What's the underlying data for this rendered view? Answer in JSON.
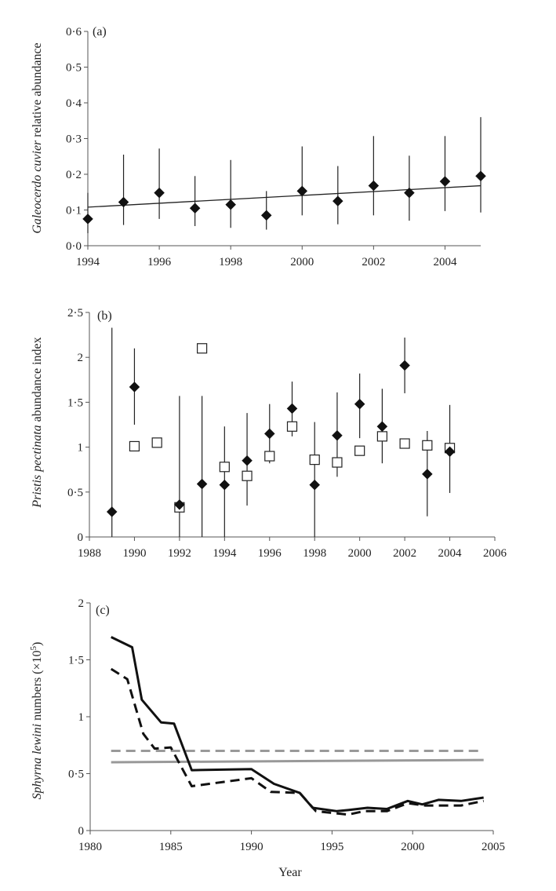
{
  "chart_data": [
    {
      "panel_label": "(a)",
      "type": "scatter",
      "title": "",
      "xlabel": "",
      "ylabel_italic": "Galeocerdo cuvier",
      "ylabel_rest": " relative abundance",
      "xlim": [
        1994,
        2005
      ],
      "ylim": [
        0,
        0.6
      ],
      "xticks": [
        1994,
        1996,
        1998,
        2000,
        2002,
        2004
      ],
      "xtick_labels": [
        "1994",
        "1996",
        "1998",
        "2000",
        "2002",
        "2004"
      ],
      "yticks": [
        0,
        0.1,
        0.2,
        0.3,
        0.4,
        0.5,
        0.6
      ],
      "ytick_labels": [
        "0·0",
        "0·1",
        "0·2",
        "0·3",
        "0·4",
        "0·5",
        "0·6"
      ],
      "series": [
        {
          "name": "abundance",
          "marker": "filled-diamond",
          "x": [
            1994,
            1995,
            1996,
            1997,
            1998,
            1999,
            2000,
            2001,
            2002,
            2003,
            2004,
            2005
          ],
          "y": [
            0.075,
            0.122,
            0.148,
            0.105,
            0.115,
            0.085,
            0.153,
            0.125,
            0.168,
            0.148,
            0.18,
            0.195
          ],
          "err_low": [
            0.035,
            0.058,
            0.075,
            0.055,
            0.05,
            0.045,
            0.085,
            0.06,
            0.085,
            0.07,
            0.097,
            0.093
          ],
          "err_high": [
            0.148,
            0.255,
            0.272,
            0.195,
            0.24,
            0.153,
            0.278,
            0.223,
            0.307,
            0.252,
            0.307,
            0.36
          ]
        }
      ],
      "trendline": {
        "x": [
          1994,
          2005
        ],
        "y": [
          0.108,
          0.168
        ]
      }
    },
    {
      "panel_label": "(b)",
      "type": "scatter",
      "title": "",
      "xlabel": "",
      "ylabel_italic": "Pristis pectinata",
      "ylabel_rest": " abundance index",
      "xlim": [
        1988,
        2006
      ],
      "ylim": [
        0,
        2.5
      ],
      "xticks": [
        1988,
        1990,
        1992,
        1994,
        1996,
        1998,
        2000,
        2002,
        2004,
        2006
      ],
      "xtick_labels": [
        "1988",
        "1990",
        "1992",
        "1994",
        "1996",
        "1998",
        "2000",
        "2002",
        "2004",
        "2006"
      ],
      "yticks": [
        0,
        0.5,
        1,
        1.5,
        2,
        2.5
      ],
      "ytick_labels": [
        "0",
        "0·5",
        "1",
        "1·5",
        "2",
        "2·5"
      ],
      "series": [
        {
          "name": "index (diamonds)",
          "marker": "filled-diamond",
          "x": [
            1989,
            1990,
            1992,
            1993,
            1994,
            1995,
            1996,
            1997,
            1998,
            1999,
            2000,
            2001,
            2002,
            2003,
            2004
          ],
          "y": [
            0.28,
            1.67,
            0.36,
            0.59,
            0.58,
            0.85,
            1.15,
            1.43,
            0.58,
            1.13,
            1.48,
            1.23,
            1.91,
            0.7,
            0.95
          ],
          "err_low": [
            0,
            1.25,
            0,
            0,
            0,
            0.35,
            0.82,
            1.12,
            0,
            0.67,
            1.1,
            0.82,
            1.6,
            0.23,
            0.49
          ],
          "err_high": [
            2.33,
            2.1,
            1.57,
            1.57,
            1.23,
            1.38,
            1.48,
            1.73,
            1.28,
            1.61,
            1.82,
            1.65,
            2.22,
            1.18,
            1.47
          ]
        },
        {
          "name": "index (squares)",
          "marker": "open-square",
          "x": [
            1990,
            1991,
            1992,
            1993,
            1994,
            1995,
            1996,
            1997,
            1998,
            1999,
            2000,
            2001,
            2002,
            2003,
            2004
          ],
          "y": [
            1.01,
            1.05,
            0.33,
            2.1,
            0.78,
            0.68,
            0.9,
            1.23,
            0.86,
            0.83,
            0.96,
            1.12,
            1.04,
            1.02,
            0.99
          ]
        }
      ]
    },
    {
      "panel_label": "(c)",
      "type": "line",
      "title": "",
      "xlabel": "Year",
      "ylabel_italic": "Sphyrna lewini",
      "ylabel_rest": " numbers (×10",
      "ylabel_sup": "5",
      "ylabel_close": ")",
      "xlim": [
        1980,
        2005
      ],
      "ylim": [
        0,
        2
      ],
      "xticks": [
        1980,
        1985,
        1990,
        1995,
        2000,
        2005
      ],
      "xtick_labels": [
        "1980",
        "1985",
        "1990",
        "1995",
        "2000",
        "2005"
      ],
      "yticks": [
        0,
        0.5,
        1,
        1.5,
        2
      ],
      "ytick_labels": [
        "0",
        "0·5",
        "1",
        "1·5",
        "2"
      ],
      "series": [
        {
          "name": "numbers (solid)",
          "style": "solid",
          "color": "#111111",
          "x": [
            1981.3,
            1982.6,
            1983.2,
            1984.4,
            1985.2,
            1986.3,
            1990,
            1991.4,
            1993,
            1993.8,
            1995.3,
            1996,
            1997.2,
            1998.4,
            1999.7,
            2000.6,
            2001.6,
            2003,
            2004.4
          ],
          "y": [
            1.7,
            1.61,
            1.15,
            0.95,
            0.94,
            0.53,
            0.54,
            0.41,
            0.33,
            0.2,
            0.17,
            0.18,
            0.2,
            0.19,
            0.26,
            0.23,
            0.27,
            0.26,
            0.29
          ]
        },
        {
          "name": "numbers (dashed)",
          "style": "dashed",
          "color": "#111111",
          "x": [
            1981.3,
            1982.3,
            1983.3,
            1984,
            1985,
            1986.3,
            1990,
            1991.2,
            1993,
            1994,
            1996,
            1997,
            1998.4,
            1999.7,
            2000.8,
            2001.5,
            2003,
            2004.4
          ],
          "y": [
            1.42,
            1.33,
            0.85,
            0.72,
            0.73,
            0.39,
            0.46,
            0.34,
            0.33,
            0.17,
            0.14,
            0.17,
            0.17,
            0.24,
            0.22,
            0.22,
            0.22,
            0.26
          ]
        },
        {
          "name": "reference (grey dashed)",
          "style": "dashed",
          "color": "#999999",
          "x": [
            1981.3,
            2004.4
          ],
          "y": [
            0.7,
            0.7
          ]
        },
        {
          "name": "reference (grey solid)",
          "style": "solid",
          "color": "#999999",
          "x": [
            1981.3,
            2004.4
          ],
          "y": [
            0.6,
            0.62
          ]
        }
      ]
    }
  ]
}
